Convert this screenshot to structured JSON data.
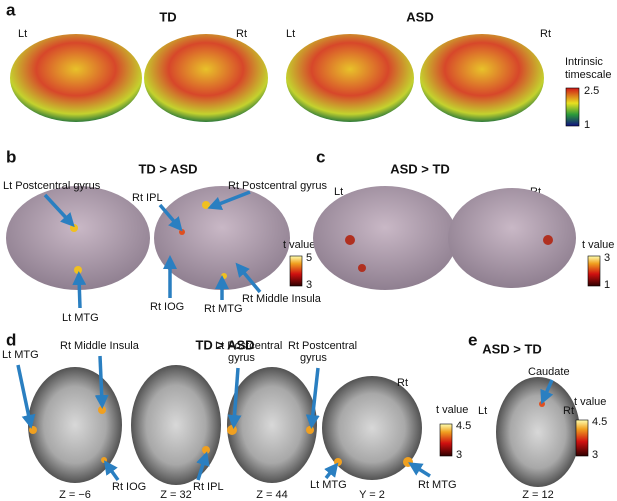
{
  "panel_a": {
    "letter": "a",
    "title_left": "TD",
    "title_right": "ASD",
    "side_labels": [
      "Lt",
      "Rt",
      "Lt",
      "Rt"
    ],
    "colorbar": {
      "label": [
        "Intrinsic",
        "timescale"
      ],
      "max": "2.5",
      "min": "1"
    }
  },
  "panel_b": {
    "letter": "b",
    "title": "TD > ASD",
    "labels": [
      "Lt Postcentral gyrus",
      "Rt IPL",
      "Rt Postcentral gyrus",
      "Lt MTG",
      "Rt IOG",
      "Rt MTG",
      "Rt Middle Insula"
    ],
    "colorbar": {
      "label": "t value",
      "max": "5",
      "min": "3"
    }
  },
  "panel_c": {
    "letter": "c",
    "title": "ASD > TD",
    "side_labels": [
      "Lt",
      "Rt"
    ],
    "colorbar": {
      "label": "t value",
      "max": "3",
      "min": "1"
    }
  },
  "panel_d": {
    "letter": "d",
    "title": "TD > ASD",
    "labels": [
      "Lt MTG",
      "Rt Middle Insula",
      "Lt Postcentral",
      "gyrus",
      "Rt Postcentral",
      "gyrus",
      "Rt",
      "Rt IOG",
      "Rt IPL",
      "Lt MTG",
      "Rt MTG"
    ],
    "slices": [
      "Z = −6",
      "Z = 32",
      "Z = 44",
      "Y = 2"
    ],
    "colorbar": {
      "label": "t value",
      "max": "4.5",
      "min": "3"
    }
  },
  "panel_e": {
    "letter": "e",
    "title": "ASD > TD",
    "labels": [
      "Caudate",
      "Lt",
      "Rt"
    ],
    "slice": "Z = 12",
    "colorbar": {
      "label": "t value",
      "max": "4.5",
      "min": "3"
    }
  }
}
